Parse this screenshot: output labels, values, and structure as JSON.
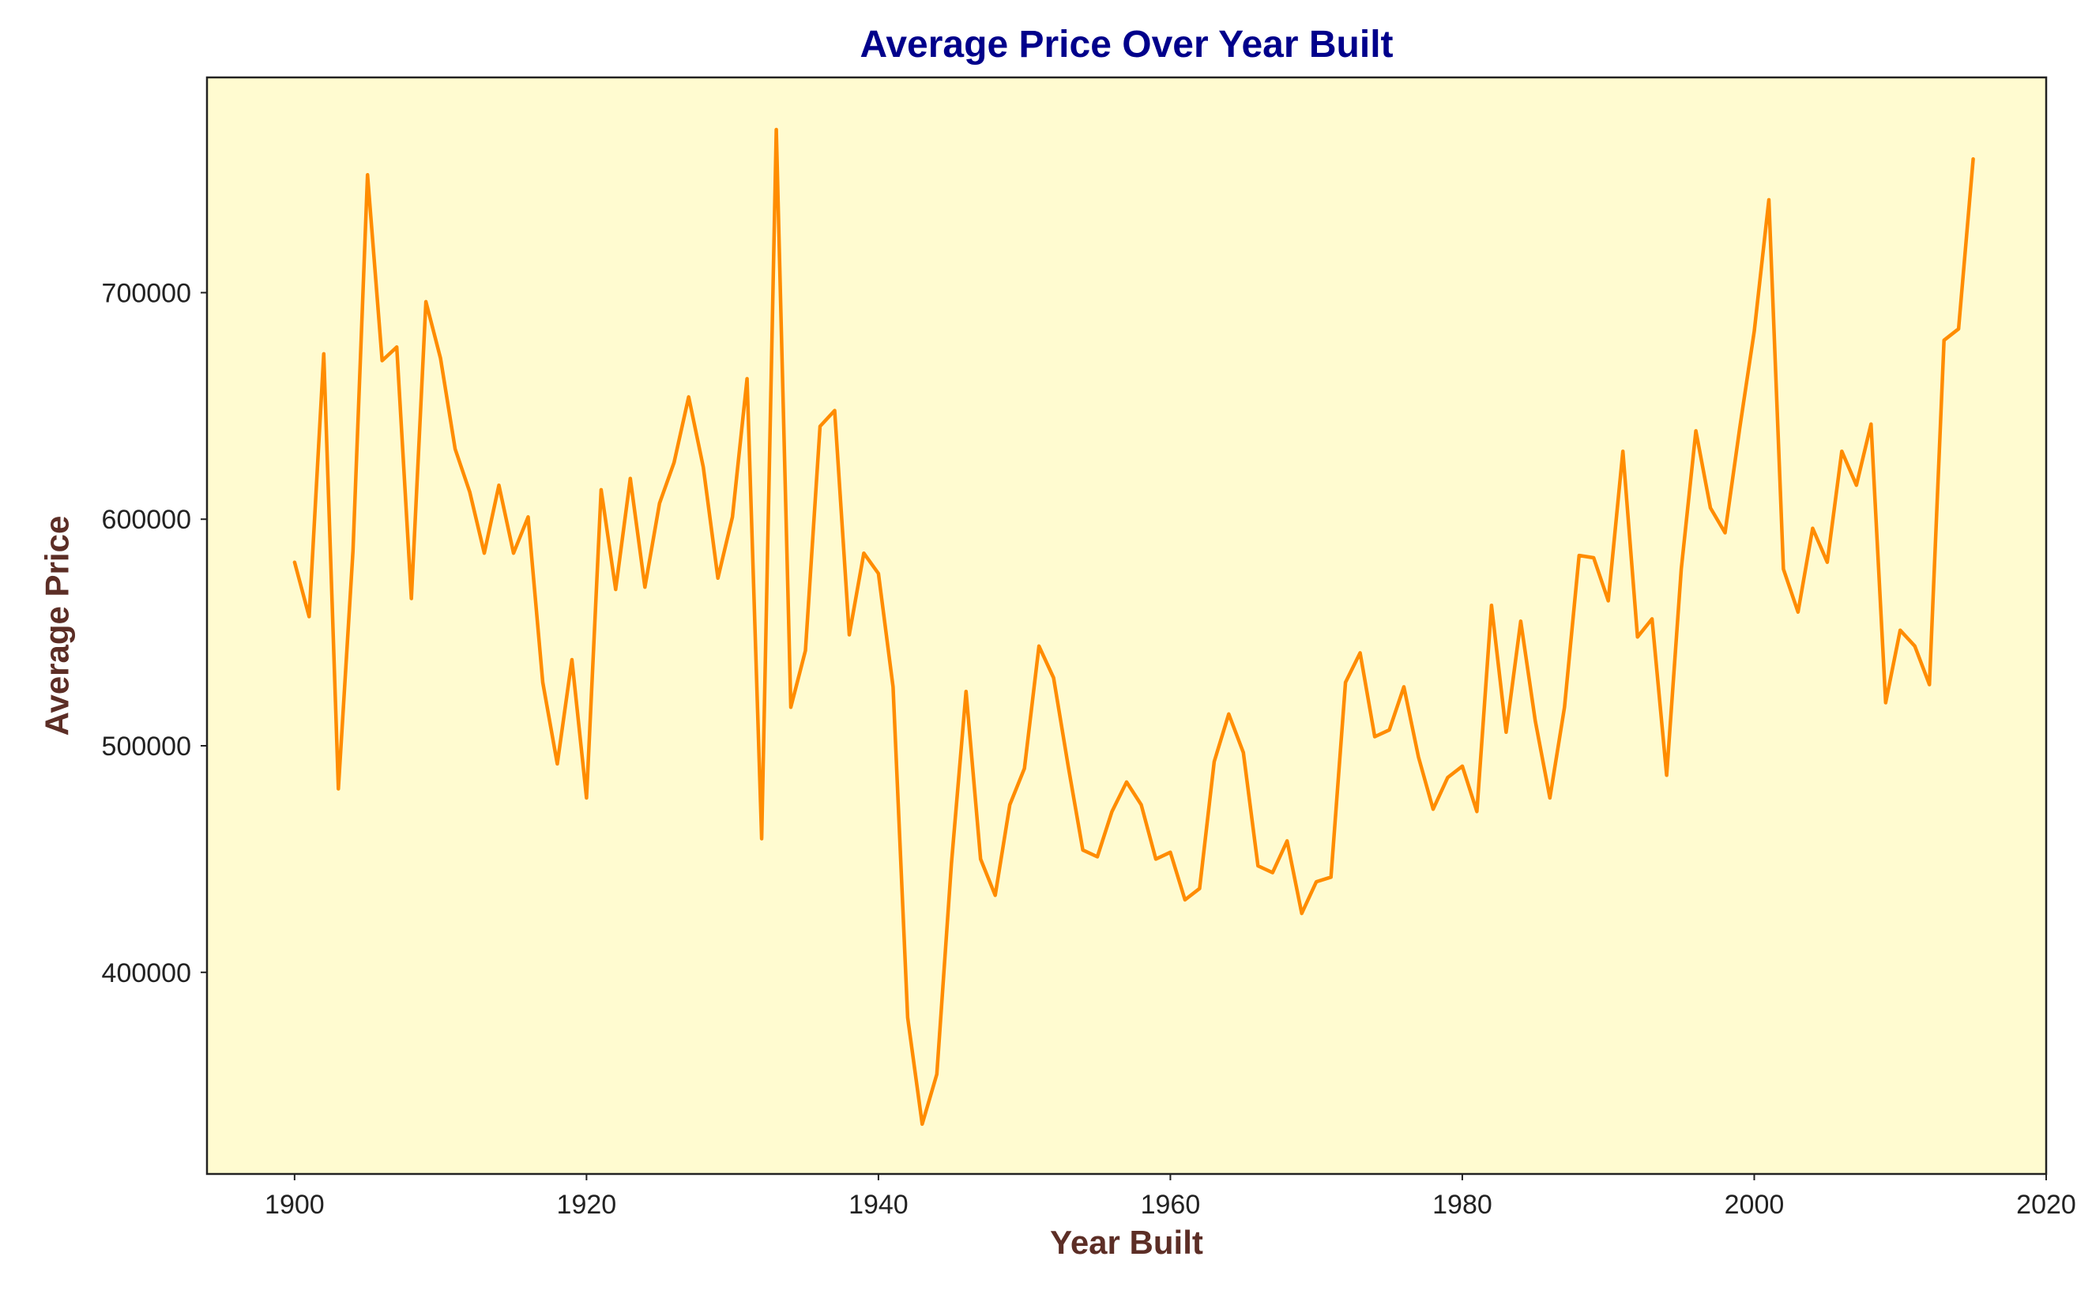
{
  "chart_data": {
    "type": "line",
    "title": "Average Price Over Year Built",
    "xlabel": "Year Built",
    "ylabel": "Average Price",
    "xlim": [
      1894,
      2020
    ],
    "ylim": [
      311000,
      795000
    ],
    "xticks": [
      1900,
      1920,
      1940,
      1960,
      1980,
      2000,
      2020
    ],
    "yticks": [
      400000,
      500000,
      600000,
      700000
    ],
    "grid": false,
    "colors": {
      "line": "#ff8c00",
      "plot_background": "#fffbd0",
      "title": "#00008b",
      "axis_label": "#5c2e26",
      "frame": "#222222"
    },
    "series": [
      {
        "x": [
          1900,
          1901,
          1902,
          1903,
          1904,
          1905,
          1906,
          1907,
          1908,
          1909,
          1910,
          1911,
          1912,
          1913,
          1914,
          1915,
          1916,
          1917,
          1918,
          1919,
          1920,
          1921,
          1922,
          1923,
          1924,
          1925,
          1926,
          1927,
          1928,
          1929,
          1930,
          1931,
          1932,
          1933,
          1934,
          1935,
          1936,
          1937,
          1938,
          1939,
          1940,
          1941,
          1942,
          1943,
          1944,
          1945,
          1946,
          1947,
          1948,
          1949,
          1950,
          1951,
          1952,
          1953,
          1954,
          1955,
          1956,
          1957,
          1958,
          1959,
          1960,
          1961,
          1962,
          1963,
          1964,
          1965,
          1966,
          1967,
          1968,
          1969,
          1970,
          1971,
          1972,
          1973,
          1974,
          1975,
          1976,
          1977,
          1978,
          1979,
          1980,
          1981,
          1982,
          1983,
          1984,
          1985,
          1986,
          1987,
          1988,
          1989,
          1990,
          1991,
          1992,
          1993,
          1994,
          1995,
          1996,
          1997,
          1998,
          1999,
          2000,
          2001,
          2002,
          2003,
          2004,
          2005,
          2006,
          2007,
          2008,
          2009,
          2010,
          2011,
          2012,
          2013,
          2014,
          2015
        ],
        "values": [
          581000,
          557000,
          673000,
          481000,
          586000,
          752000,
          670000,
          676000,
          565000,
          696000,
          671000,
          631000,
          612000,
          585000,
          615000,
          585000,
          601000,
          528000,
          492000,
          538000,
          477000,
          613000,
          569000,
          618000,
          570000,
          607000,
          625000,
          654000,
          623000,
          574000,
          601000,
          662000,
          459000,
          772000,
          517000,
          542000,
          641000,
          648000,
          549000,
          585000,
          576000,
          526000,
          380000,
          333000,
          355000,
          448000,
          524000,
          450000,
          434000,
          474000,
          490000,
          544000,
          530000,
          491000,
          454000,
          451000,
          471000,
          484000,
          474000,
          450000,
          453000,
          432000,
          437000,
          493000,
          514000,
          497000,
          447000,
          444000,
          458000,
          426000,
          440000,
          442000,
          528000,
          541000,
          504000,
          507000,
          526000,
          495000,
          472000,
          486000,
          491000,
          471000,
          562000,
          506000,
          555000,
          511000,
          477000,
          517000,
          584000,
          583000,
          564000,
          630000,
          548000,
          556000,
          487000,
          578000,
          639000,
          605000,
          594000,
          640000,
          683000,
          741000,
          578000,
          559000,
          596000,
          581000,
          630000,
          615000,
          642000,
          519000,
          551000,
          544000,
          527000,
          679000,
          684000,
          759000
        ]
      }
    ]
  }
}
